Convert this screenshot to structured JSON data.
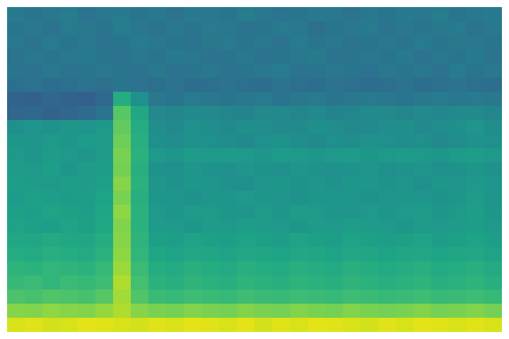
{
  "chart_data": {
    "type": "heatmap",
    "color": "viridis",
    "tick_labels": false,
    "zlim": [
      0,
      100
    ],
    "cells": [
      [
        41,
        39,
        40,
        42,
        38,
        40,
        41,
        39,
        40,
        38,
        41,
        40,
        39,
        42,
        40,
        38,
        39,
        41,
        40,
        38,
        40,
        39,
        41,
        40,
        42,
        39,
        40,
        41
      ],
      [
        39,
        40,
        38,
        41,
        40,
        39,
        42,
        40,
        38,
        40,
        39,
        41,
        40,
        38,
        39,
        41,
        40,
        37,
        39,
        40,
        41,
        38,
        40,
        39,
        40,
        41,
        38,
        40
      ],
      [
        40,
        38,
        41,
        39,
        40,
        38,
        39,
        41,
        40,
        39,
        38,
        40,
        41,
        39,
        40,
        38,
        41,
        39,
        40,
        38,
        39,
        40,
        38,
        41,
        39,
        40,
        40,
        39
      ],
      [
        38,
        40,
        39,
        40,
        41,
        39,
        38,
        40,
        39,
        41,
        40,
        38,
        39,
        40,
        38,
        39,
        40,
        41,
        38,
        39,
        40,
        39,
        41,
        38,
        40,
        39,
        41,
        38
      ],
      [
        39,
        38,
        40,
        38,
        39,
        40,
        39,
        38,
        40,
        38,
        39,
        40,
        38,
        39,
        40,
        41,
        38,
        39,
        40,
        39,
        38,
        40,
        39,
        40,
        38,
        41,
        39,
        40
      ],
      [
        37,
        38,
        36,
        37,
        38,
        37,
        39,
        38,
        37,
        38,
        36,
        37,
        38,
        37,
        36,
        38,
        37,
        36,
        38,
        37,
        36,
        37,
        38,
        36,
        37,
        38,
        37,
        36
      ],
      [
        32,
        31,
        33,
        32,
        31,
        34,
        62,
        50,
        40,
        39,
        41,
        40,
        39,
        40,
        41,
        39,
        40,
        41,
        39,
        40,
        41,
        40,
        39,
        40,
        41,
        40,
        41,
        40
      ],
      [
        33,
        34,
        32,
        33,
        35,
        38,
        74,
        60,
        47,
        46,
        48,
        47,
        46,
        45,
        47,
        48,
        46,
        47,
        45,
        46,
        48,
        47,
        46,
        47,
        46,
        48,
        47,
        46
      ],
      [
        50,
        52,
        51,
        53,
        52,
        54,
        76,
        62,
        49,
        48,
        50,
        49,
        48,
        50,
        49,
        47,
        48,
        50,
        49,
        48,
        47,
        49,
        50,
        48,
        49,
        50,
        52,
        49
      ],
      [
        53,
        52,
        54,
        53,
        55,
        54,
        78,
        63,
        50,
        49,
        51,
        50,
        49,
        48,
        50,
        51,
        49,
        48,
        50,
        49,
        51,
        50,
        49,
        50,
        48,
        49,
        51,
        50
      ],
      [
        54,
        53,
        55,
        54,
        53,
        55,
        80,
        64,
        54,
        53,
        55,
        54,
        55,
        54,
        53,
        55,
        54,
        53,
        54,
        55,
        53,
        54,
        55,
        54,
        53,
        55,
        56,
        54
      ],
      [
        55,
        54,
        56,
        53,
        55,
        56,
        79,
        63,
        51,
        50,
        52,
        51,
        50,
        52,
        51,
        50,
        52,
        51,
        50,
        51,
        52,
        50,
        51,
        52,
        50,
        51,
        53,
        51
      ],
      [
        56,
        55,
        54,
        56,
        55,
        57,
        82,
        64,
        52,
        51,
        53,
        52,
        51,
        50,
        52,
        53,
        51,
        52,
        51,
        53,
        52,
        51,
        52,
        50,
        53,
        52,
        54,
        52
      ],
      [
        55,
        57,
        56,
        55,
        56,
        58,
        80,
        63,
        53,
        52,
        51,
        53,
        52,
        54,
        53,
        52,
        51,
        53,
        52,
        53,
        51,
        52,
        53,
        52,
        51,
        53,
        55,
        52
      ],
      [
        57,
        56,
        58,
        57,
        56,
        59,
        83,
        64,
        54,
        53,
        55,
        54,
        53,
        52,
        54,
        53,
        55,
        54,
        53,
        52,
        54,
        53,
        54,
        55,
        53,
        54,
        56,
        53
      ],
      [
        58,
        57,
        56,
        58,
        57,
        60,
        81,
        64,
        55,
        54,
        53,
        55,
        54,
        56,
        55,
        54,
        53,
        55,
        54,
        56,
        55,
        54,
        53,
        55,
        54,
        55,
        56,
        54
      ],
      [
        60,
        59,
        61,
        60,
        59,
        62,
        82,
        65,
        57,
        56,
        58,
        57,
        56,
        58,
        57,
        56,
        58,
        57,
        56,
        58,
        57,
        56,
        57,
        58,
        56,
        57,
        58,
        56
      ],
      [
        62,
        61,
        63,
        62,
        61,
        64,
        83,
        66,
        59,
        58,
        60,
        59,
        58,
        60,
        59,
        58,
        60,
        59,
        58,
        60,
        59,
        58,
        59,
        60,
        58,
        59,
        60,
        58
      ],
      [
        65,
        64,
        66,
        65,
        64,
        67,
        85,
        68,
        62,
        61,
        63,
        62,
        61,
        63,
        62,
        61,
        63,
        62,
        61,
        63,
        62,
        61,
        62,
        63,
        61,
        62,
        63,
        61
      ],
      [
        67,
        68,
        66,
        68,
        67,
        69,
        88,
        70,
        64,
        63,
        65,
        64,
        63,
        65,
        64,
        63,
        65,
        64,
        63,
        65,
        64,
        63,
        64,
        65,
        63,
        64,
        65,
        63
      ],
      [
        72,
        71,
        73,
        72,
        71,
        74,
        86,
        73,
        68,
        67,
        69,
        68,
        67,
        69,
        68,
        67,
        69,
        68,
        67,
        69,
        68,
        67,
        68,
        69,
        67,
        68,
        69,
        67
      ],
      [
        82,
        81,
        83,
        82,
        81,
        84,
        88,
        82,
        80,
        79,
        81,
        80,
        79,
        81,
        80,
        79,
        81,
        80,
        79,
        81,
        80,
        79,
        80,
        81,
        79,
        80,
        81,
        79
      ],
      [
        94,
        95,
        93,
        94,
        96,
        95,
        94,
        93,
        95,
        94,
        96,
        95,
        94,
        96,
        93,
        95,
        94,
        96,
        95,
        94,
        93,
        95,
        94,
        96,
        95,
        94,
        95,
        94
      ]
    ]
  }
}
